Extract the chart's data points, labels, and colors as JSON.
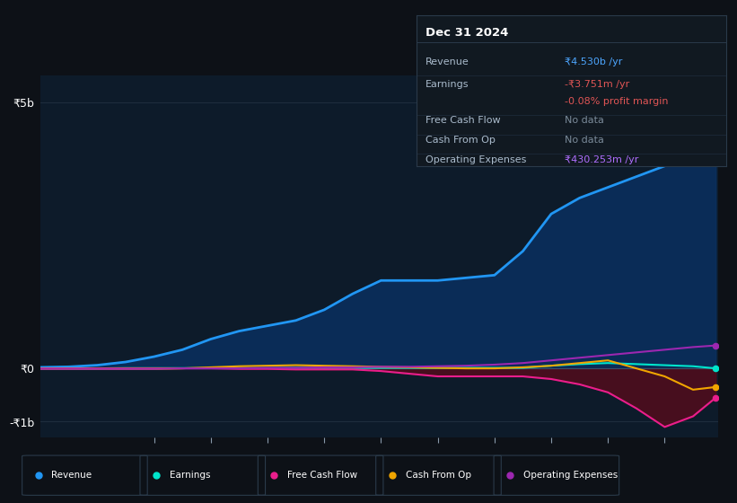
{
  "bg_color": "#0d1117",
  "plot_bg_color": "#0d1b2a",
  "grid_color": "#1e2d3d",
  "title_box": {
    "title": "Dec 31 2024",
    "rows": [
      {
        "label": "Revenue",
        "value": "₹4.530b /yr",
        "value_color": "#4da6ff"
      },
      {
        "label": "Earnings",
        "value": "-₹3.751m /yr",
        "value_color": "#e05555"
      },
      {
        "label": "",
        "value": "-0.08% profit margin",
        "value_color": "#e05555"
      },
      {
        "label": "Free Cash Flow",
        "value": "No data",
        "value_color": "#7a8a99"
      },
      {
        "label": "Cash From Op",
        "value": "No data",
        "value_color": "#7a8a99"
      },
      {
        "label": "Operating Expenses",
        "value": "₹430.253m /yr",
        "value_color": "#b06eff"
      }
    ]
  },
  "years": [
    2013.0,
    2013.5,
    2014.0,
    2014.5,
    2015.0,
    2015.5,
    2016.0,
    2016.5,
    2017.0,
    2017.5,
    2018.0,
    2018.5,
    2019.0,
    2019.5,
    2020.0,
    2020.5,
    2021.0,
    2021.5,
    2022.0,
    2022.5,
    2023.0,
    2023.5,
    2024.0,
    2024.5,
    2024.9
  ],
  "revenue": [
    0.02,
    0.03,
    0.06,
    0.12,
    0.22,
    0.35,
    0.55,
    0.7,
    0.8,
    0.9,
    1.1,
    1.4,
    1.65,
    1.65,
    1.65,
    1.7,
    1.75,
    2.2,
    2.9,
    3.2,
    3.4,
    3.6,
    3.8,
    4.3,
    4.53
  ],
  "earnings": [
    0.0,
    0.0,
    0.0,
    0.005,
    0.005,
    0.005,
    0.005,
    0.005,
    0.005,
    0.01,
    0.01,
    0.01,
    0.01,
    0.01,
    0.01,
    0.01,
    0.01,
    0.01,
    0.05,
    0.08,
    0.1,
    0.08,
    0.06,
    0.04,
    0.0
  ],
  "free_cash_flow": [
    0.0,
    0.0,
    0.0,
    0.0,
    0.0,
    0.0,
    0.0,
    -0.01,
    -0.01,
    -0.02,
    -0.02,
    -0.02,
    -0.05,
    -0.1,
    -0.15,
    -0.15,
    -0.15,
    -0.15,
    -0.2,
    -0.3,
    -0.45,
    -0.75,
    -1.1,
    -0.9,
    -0.55
  ],
  "cash_from_op": [
    -0.01,
    -0.01,
    -0.01,
    -0.01,
    -0.01,
    0.0,
    0.02,
    0.04,
    0.05,
    0.06,
    0.05,
    0.04,
    0.03,
    0.02,
    0.01,
    0.0,
    0.0,
    0.02,
    0.05,
    0.1,
    0.15,
    0.0,
    -0.15,
    -0.4,
    -0.35
  ],
  "operating_expenses": [
    -0.01,
    -0.01,
    -0.01,
    -0.01,
    -0.01,
    0.0,
    0.0,
    0.0,
    0.01,
    0.01,
    0.02,
    0.02,
    0.03,
    0.03,
    0.04,
    0.05,
    0.07,
    0.1,
    0.15,
    0.2,
    0.25,
    0.3,
    0.35,
    0.4,
    0.43
  ],
  "ylim": [
    -1.3,
    5.5
  ],
  "yticks": [
    -1.0,
    0.0,
    5.0
  ],
  "ytick_labels": [
    "-₹1b",
    "₹0",
    "₹5b"
  ],
  "revenue_color": "#2196f3",
  "earnings_color": "#00e5cc",
  "fcf_color": "#e91e8c",
  "cfo_color": "#f0a500",
  "opex_color": "#9c27b0",
  "revenue_fill_color": "#0a3060",
  "fcf_fill_color": "#5c0a1a",
  "legend_items": [
    {
      "label": "Revenue",
      "color": "#2196f3"
    },
    {
      "label": "Earnings",
      "color": "#00e5cc"
    },
    {
      "label": "Free Cash Flow",
      "color": "#e91e8c"
    },
    {
      "label": "Cash From Op",
      "color": "#f0a500"
    },
    {
      "label": "Operating Expenses",
      "color": "#9c27b0"
    }
  ]
}
